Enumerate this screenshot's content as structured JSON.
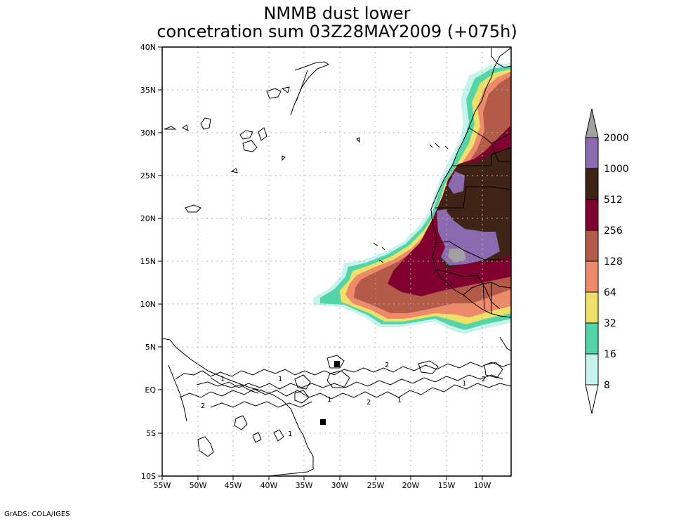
{
  "title": {
    "line1": "NMMB dust lower",
    "line2": "concetration sum 03Z28MAY2009 (+075h)"
  },
  "map": {
    "lat_labels": [
      "40N",
      "35N",
      "30N",
      "25N",
      "20N",
      "15N",
      "10N",
      "5N",
      "EQ",
      "5S",
      "10S"
    ],
    "lon_labels": [
      "55W",
      "50W",
      "45W",
      "40W",
      "35W",
      "30W",
      "25W",
      "20W",
      "15W",
      "10W"
    ],
    "contour_labels": [
      "1",
      "2",
      "1",
      "1",
      "2",
      "1",
      "2",
      "1",
      "2",
      "1"
    ]
  },
  "legend": {
    "levels": [
      "2000",
      "1000",
      "512",
      "256",
      "128",
      "64",
      "32",
      "16",
      "8"
    ],
    "colors": [
      "#a0a0a0",
      "#8c6ab0",
      "#3f2415",
      "#800030",
      "#b45a48",
      "#ec8a6a",
      "#f0e068",
      "#52d6a8",
      "#c8f2ee",
      "#ffffff"
    ]
  },
  "footer": "GrADS: COLA/IGES"
}
